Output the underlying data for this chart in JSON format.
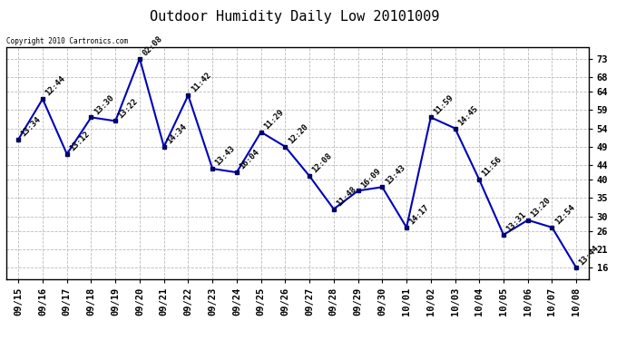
{
  "title": "Outdoor Humidity Daily Low 20101009",
  "copyright": "Copyright 2010 Cartronics.com",
  "x_labels": [
    "09/15",
    "09/16",
    "09/17",
    "09/18",
    "09/19",
    "09/20",
    "09/21",
    "09/22",
    "09/23",
    "09/24",
    "09/25",
    "09/26",
    "09/27",
    "09/28",
    "09/29",
    "09/30",
    "10/01",
    "10/02",
    "10/03",
    "10/04",
    "10/05",
    "10/06",
    "10/07",
    "10/08"
  ],
  "y_values": [
    51,
    62,
    47,
    57,
    56,
    73,
    49,
    63,
    43,
    42,
    53,
    49,
    41,
    32,
    37,
    38,
    27,
    57,
    54,
    40,
    25,
    29,
    27,
    16
  ],
  "point_labels": [
    "13:34",
    "12:44",
    "13:12",
    "13:30",
    "13:22",
    "02:08",
    "14:34",
    "11:42",
    "13:43",
    "16:04",
    "11:29",
    "12:20",
    "12:08",
    "11:48",
    "16:09",
    "13:43",
    "14:17",
    "11:59",
    "14:45",
    "11:56",
    "13:31",
    "13:20",
    "12:54",
    "13:44"
  ],
  "line_color": "#0000bb",
  "marker_color": "#000066",
  "bg_color": "#ffffff",
  "plot_bg_color": "#ffffff",
  "grid_color": "#bbbbbb",
  "y_ticks": [
    16,
    21,
    26,
    30,
    35,
    40,
    44,
    49,
    54,
    59,
    64,
    68,
    73
  ],
  "ylim": [
    13,
    76
  ],
  "title_fontsize": 11,
  "label_fontsize": 6.5,
  "tick_fontsize": 7.5
}
